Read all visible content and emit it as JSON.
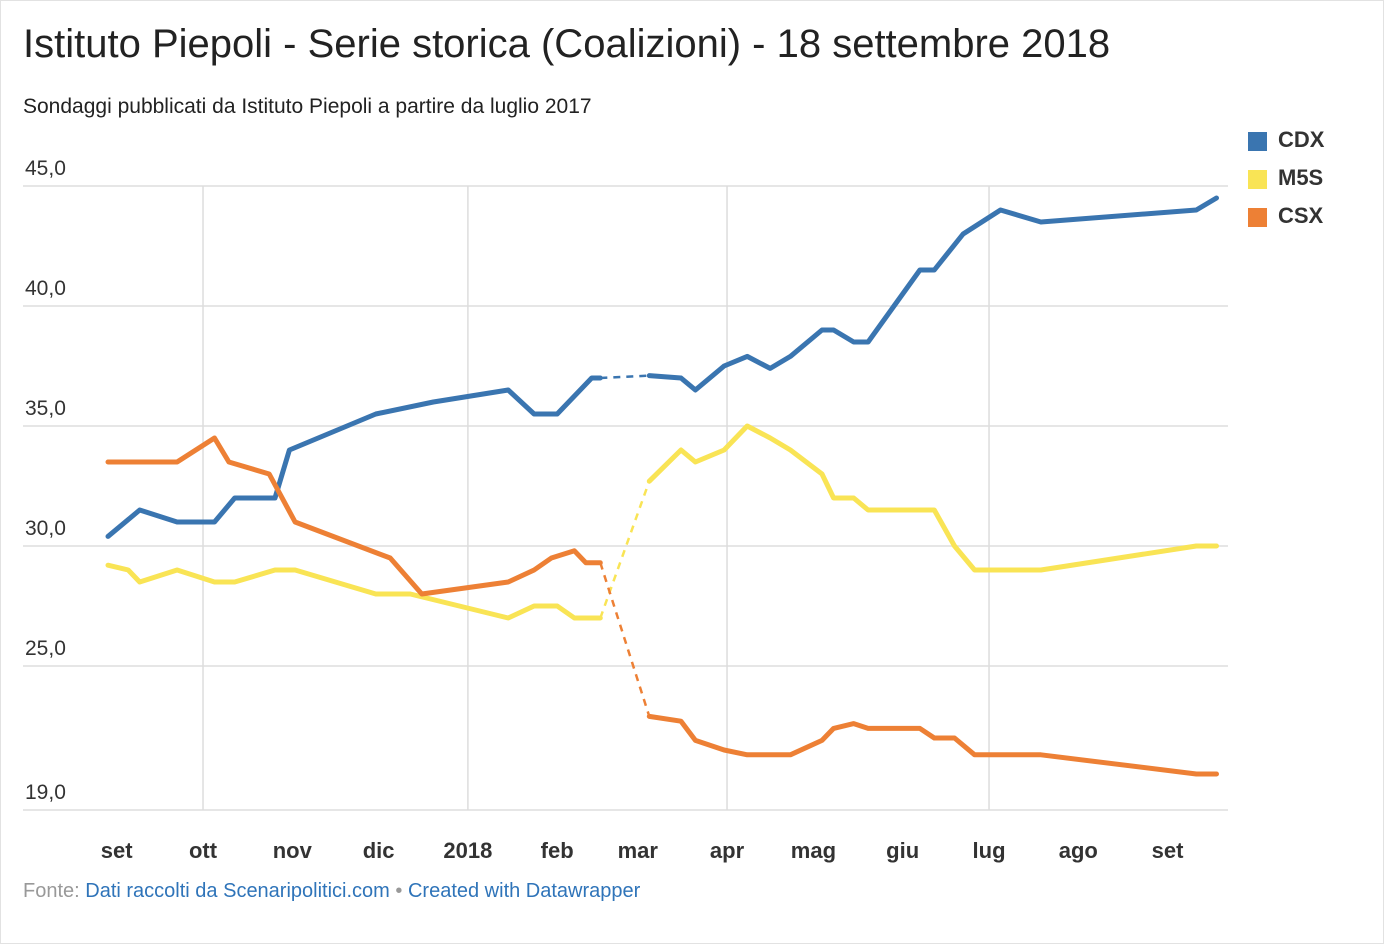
{
  "title": "Istituto Piepoli - Serie storica (Coalizioni) - 18 settembre 2018",
  "subtitle": "Sondaggi pubblicati da Istituto Piepoli a partire da luglio 2017",
  "footer": {
    "prefix": "Fonte:",
    "source": "Dati raccolti da Scenaripolitici.com",
    "separator": "•",
    "credit": "Created with Datawrapper"
  },
  "colors": {
    "CDX": "#3a75b0",
    "M5S": "#f9e455",
    "CSX": "#ed8035",
    "grid": "#dddddd",
    "axis": "#cccccc",
    "link": "#2f74b9"
  },
  "chart_data": {
    "type": "line",
    "title": "Istituto Piepoli - Serie storica (Coalizioni) - 18 settembre 2018",
    "xlabel": "",
    "ylabel": "",
    "x_type": "date",
    "xlim": [
      "2017-08-29",
      "2018-09-22"
    ],
    "ylim": [
      19.0,
      45.0
    ],
    "y_ticks": [
      "45,0",
      "40,0",
      "35,0",
      "30,0",
      "25,0",
      "19,0"
    ],
    "y_tick_values": [
      45,
      40,
      35,
      30,
      25,
      19
    ],
    "x_ticks": [
      {
        "label": "set",
        "date": "2017-09-01",
        "grid": false
      },
      {
        "label": "ott",
        "date": "2017-10-01",
        "grid": true
      },
      {
        "label": "nov",
        "date": "2017-11-01",
        "grid": false
      },
      {
        "label": "dic",
        "date": "2017-12-01",
        "grid": false
      },
      {
        "label": "2018",
        "date": "2018-01-01",
        "grid": true
      },
      {
        "label": "feb",
        "date": "2018-02-01",
        "grid": false
      },
      {
        "label": "mar",
        "date": "2018-03-01",
        "grid": false
      },
      {
        "label": "apr",
        "date": "2018-04-01",
        "grid": true
      },
      {
        "label": "mag",
        "date": "2018-05-01",
        "grid": false
      },
      {
        "label": "giu",
        "date": "2018-06-01",
        "grid": false
      },
      {
        "label": "lug",
        "date": "2018-07-01",
        "grid": true
      },
      {
        "label": "ago",
        "date": "2018-08-01",
        "grid": false
      },
      {
        "label": "set",
        "date": "2018-09-01",
        "grid": false
      }
    ],
    "grid": true,
    "legend_position": "top-right",
    "gap_after": "2018-02-16",
    "gap_before": "2018-03-05",
    "series": [
      {
        "name": "CDX",
        "points": [
          [
            "2017-08-29",
            30.4
          ],
          [
            "2017-09-03",
            30.9
          ],
          [
            "2017-09-09",
            31.5
          ],
          [
            "2017-09-22",
            31.0
          ],
          [
            "2017-10-05",
            31.0
          ],
          [
            "2017-10-12",
            32.0
          ],
          [
            "2017-10-26",
            32.0
          ],
          [
            "2017-10-31",
            34.0
          ],
          [
            "2017-11-30",
            35.5
          ],
          [
            "2017-12-20",
            36.0
          ],
          [
            "2018-01-15",
            36.5
          ],
          [
            "2018-01-24",
            35.5
          ],
          [
            "2018-02-01",
            35.5
          ],
          [
            "2018-02-13",
            37.0
          ],
          [
            "2018-02-16",
            37.0
          ],
          [
            "2018-03-05",
            37.1
          ],
          [
            "2018-03-16",
            37.0
          ],
          [
            "2018-03-21",
            36.5
          ],
          [
            "2018-03-31",
            37.5
          ],
          [
            "2018-04-08",
            37.9
          ],
          [
            "2018-04-16",
            37.4
          ],
          [
            "2018-04-23",
            37.9
          ],
          [
            "2018-05-04",
            39.0
          ],
          [
            "2018-05-08",
            39.0
          ],
          [
            "2018-05-15",
            38.5
          ],
          [
            "2018-05-20",
            38.5
          ],
          [
            "2018-06-07",
            41.5
          ],
          [
            "2018-06-12",
            41.5
          ],
          [
            "2018-06-22",
            43.0
          ],
          [
            "2018-07-05",
            44.0
          ],
          [
            "2018-07-19",
            43.5
          ],
          [
            "2018-09-11",
            44.0
          ],
          [
            "2018-09-18",
            44.5
          ]
        ]
      },
      {
        "name": "M5S",
        "points": [
          [
            "2017-08-29",
            29.2
          ],
          [
            "2017-09-05",
            29.0
          ],
          [
            "2017-09-09",
            28.5
          ],
          [
            "2017-09-22",
            29.0
          ],
          [
            "2017-10-05",
            28.5
          ],
          [
            "2017-10-12",
            28.5
          ],
          [
            "2017-10-26",
            29.0
          ],
          [
            "2017-11-02",
            29.0
          ],
          [
            "2017-11-30",
            28.0
          ],
          [
            "2017-12-12",
            28.0
          ],
          [
            "2018-01-15",
            27.0
          ],
          [
            "2018-01-24",
            27.5
          ],
          [
            "2018-02-01",
            27.5
          ],
          [
            "2018-02-07",
            27.0
          ],
          [
            "2018-02-16",
            27.0
          ],
          [
            "2018-03-05",
            32.7
          ],
          [
            "2018-03-16",
            34.0
          ],
          [
            "2018-03-21",
            33.5
          ],
          [
            "2018-03-31",
            34.0
          ],
          [
            "2018-04-08",
            35.0
          ],
          [
            "2018-04-16",
            34.5
          ],
          [
            "2018-04-23",
            34.0
          ],
          [
            "2018-05-04",
            33.0
          ],
          [
            "2018-05-08",
            32.0
          ],
          [
            "2018-05-15",
            32.0
          ],
          [
            "2018-05-20",
            31.5
          ],
          [
            "2018-06-07",
            31.5
          ],
          [
            "2018-06-12",
            31.5
          ],
          [
            "2018-06-19",
            30.0
          ],
          [
            "2018-06-26",
            29.0
          ],
          [
            "2018-07-19",
            29.0
          ],
          [
            "2018-09-11",
            30.0
          ],
          [
            "2018-09-18",
            30.0
          ]
        ]
      },
      {
        "name": "CSX",
        "points": [
          [
            "2017-08-29",
            33.5
          ],
          [
            "2017-09-22",
            33.5
          ],
          [
            "2017-10-05",
            34.5
          ],
          [
            "2017-10-10",
            33.5
          ],
          [
            "2017-10-24",
            33.0
          ],
          [
            "2017-11-02",
            31.0
          ],
          [
            "2017-12-05",
            29.5
          ],
          [
            "2017-12-16",
            28.0
          ],
          [
            "2018-01-15",
            28.5
          ],
          [
            "2018-01-24",
            29.0
          ],
          [
            "2018-01-30",
            29.5
          ],
          [
            "2018-02-07",
            29.8
          ],
          [
            "2018-02-11",
            29.3
          ],
          [
            "2018-02-16",
            29.3
          ],
          [
            "2018-03-05",
            22.9
          ],
          [
            "2018-03-16",
            22.7
          ],
          [
            "2018-03-21",
            21.9
          ],
          [
            "2018-03-31",
            21.5
          ],
          [
            "2018-04-08",
            21.3
          ],
          [
            "2018-04-16",
            21.3
          ],
          [
            "2018-04-23",
            21.3
          ],
          [
            "2018-05-04",
            21.9
          ],
          [
            "2018-05-08",
            22.4
          ],
          [
            "2018-05-15",
            22.6
          ],
          [
            "2018-05-20",
            22.4
          ],
          [
            "2018-06-07",
            22.4
          ],
          [
            "2018-06-12",
            22.0
          ],
          [
            "2018-06-19",
            22.0
          ],
          [
            "2018-06-26",
            21.3
          ],
          [
            "2018-07-19",
            21.3
          ],
          [
            "2018-09-11",
            20.5
          ],
          [
            "2018-09-18",
            20.5
          ]
        ]
      }
    ]
  }
}
